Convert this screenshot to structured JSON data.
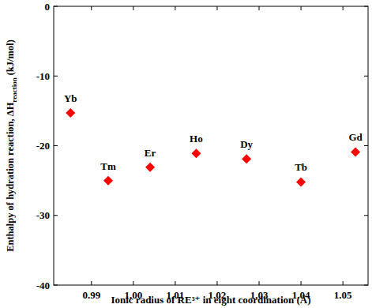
{
  "chart_data": {
    "type": "scatter",
    "xlabel": "Ionic radius of RE³⁺ in eight coordination (Å)",
    "ylabel": "Enthalpy of hydration reaction, ΔH",
    "ylabel_sub": "reaction",
    "ylabel_unit": "(kJ/mol)",
    "labels": [
      "Yb",
      "Tm",
      "Er",
      "Ho",
      "Dy",
      "Tb",
      "Gd"
    ],
    "x": [
      0.985,
      0.994,
      1.004,
      1.015,
      1.027,
      1.04,
      1.053
    ],
    "values": [
      -15.3,
      -25.0,
      -23.1,
      -21.1,
      -21.9,
      -25.2,
      -20.9
    ],
    "color": "#ff0000",
    "marker": "diamond",
    "xlim": [
      0.981,
      1.056
    ],
    "xticks": [
      0.99,
      {
        "value": 1.0,
        "label": "1.00"
      },
      1.01,
      1.02,
      1.03,
      1.04,
      1.05
    ],
    "ylim": [
      -40,
      0
    ],
    "yticks": [
      -40,
      -30,
      -20,
      -10,
      0
    ],
    "grid": false
  }
}
